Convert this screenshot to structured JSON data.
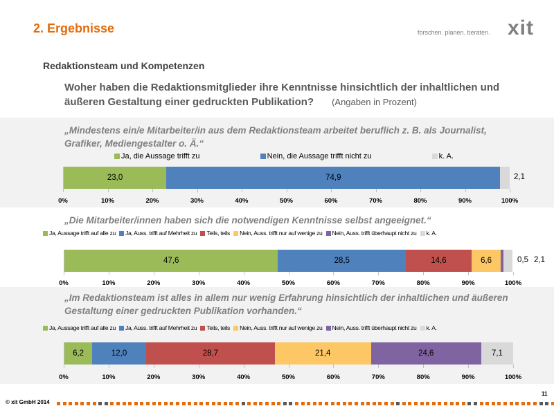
{
  "header": {
    "title": "2. Ergebnisse",
    "tagline": "forschen. planen. beraten.",
    "logo": "xit"
  },
  "section": "Redaktionsteam und Kompetenzen",
  "question": {
    "line1": "Woher haben die Redaktionsmitglieder ihre Kenntnisse hinsichtlich der inhaltlichen und",
    "line2": "äußeren Gestaltung einer gedruckten Publikation?",
    "note": "(Angaben in Prozent)"
  },
  "colors": {
    "green": "#9bbb59",
    "blue": "#4f81bd",
    "red": "#c0504d",
    "yellow": "#fcc764",
    "purple": "#8064a2",
    "gray": "#d9d9d9",
    "accent": "#e46c0a"
  },
  "chart_data": [
    {
      "type": "bar",
      "orientation": "horizontal-stacked-100",
      "title_lines": [
        "„Mindestens ein/e Mitarbeiter/in aus dem Redaktionsteam arbeitet beruflich z. B. als Journalist,",
        "Grafiker, Mediengestalter o. Ä.“"
      ],
      "series": [
        {
          "name": "Ja, die Aussage trifft zu",
          "value": 23.0,
          "label": "23,0",
          "color": "#9bbb59"
        },
        {
          "name": "Nein, die Aussage trifft nicht zu",
          "value": 74.9,
          "label": "74,9",
          "color": "#4f81bd"
        },
        {
          "name": "k. A.",
          "value": 2.1,
          "label": "2,1",
          "color": "#d9d9d9"
        }
      ],
      "xticks": [
        "0%",
        "10%",
        "20%",
        "30%",
        "40%",
        "50%",
        "60%",
        "70%",
        "80%",
        "90%",
        "100%"
      ],
      "xlim": [
        0,
        100
      ],
      "legend": "top"
    },
    {
      "type": "bar",
      "orientation": "horizontal-stacked-100",
      "title_lines": [
        "„Die Mitarbeiter/innen haben sich die notwendigen Kenntnisse selbst angeeignet.“"
      ],
      "series": [
        {
          "name": "Ja, Aussage trifft auf alle zu",
          "value": 47.6,
          "label": "47,6",
          "color": "#9bbb59"
        },
        {
          "name": "Ja, Auss. trifft auf Mehrheit zu",
          "value": 28.5,
          "label": "28,5",
          "color": "#4f81bd"
        },
        {
          "name": "Teils, teils",
          "value": 14.6,
          "label": "14,6",
          "color": "#c0504d"
        },
        {
          "name": "Nein, Auss. trifft nur auf wenige zu",
          "value": 6.6,
          "label": "6,6",
          "color": "#fcc764"
        },
        {
          "name": "Nein, Auss. trifft überhaupt nicht zu",
          "value": 0.5,
          "label": "0,5",
          "color": "#8064a2"
        },
        {
          "name": "k. A.",
          "value": 2.1,
          "label": "2,1",
          "color": "#d9d9d9"
        }
      ],
      "xticks": [
        "0%",
        "10%",
        "20%",
        "30%",
        "40%",
        "50%",
        "60%",
        "70%",
        "80%",
        "90%",
        "100%"
      ],
      "xlim": [
        0,
        100
      ],
      "legend": "top"
    },
    {
      "type": "bar",
      "orientation": "horizontal-stacked-100",
      "title_lines": [
        "„Im Redaktionsteam ist alles in allem nur wenig Erfahrung hinsichtlich der inhaltlichen und äußeren",
        "Gestaltung einer gedruckten Publikation vorhanden.“"
      ],
      "series": [
        {
          "name": "Ja, Aussage trifft auf alle zu",
          "value": 6.2,
          "label": "6,2",
          "color": "#9bbb59"
        },
        {
          "name": "Ja, Auss. trifft auf Mehrheit zu",
          "value": 12.0,
          "label": "12,0",
          "color": "#4f81bd"
        },
        {
          "name": "Teils, teils",
          "value": 28.7,
          "label": "28,7",
          "color": "#c0504d"
        },
        {
          "name": "Nein, Auss. trifft nur auf wenige zu",
          "value": 21.4,
          "label": "21,4",
          "color": "#fcc764"
        },
        {
          "name": "Nein, Auss. trifft überhaupt nicht zu",
          "value": 24.6,
          "label": "24,6",
          "color": "#8064a2"
        },
        {
          "name": "k. A.",
          "value": 7.1,
          "label": "7,1",
          "color": "#d9d9d9"
        }
      ],
      "xticks": [
        "0%",
        "10%",
        "20%",
        "30%",
        "40%",
        "50%",
        "60%",
        "70%",
        "80%",
        "90%",
        "100%"
      ],
      "xlim": [
        0,
        100
      ],
      "legend": "top"
    }
  ],
  "footer": {
    "copyright": "© xit GmbH 2014",
    "page": "11"
  }
}
